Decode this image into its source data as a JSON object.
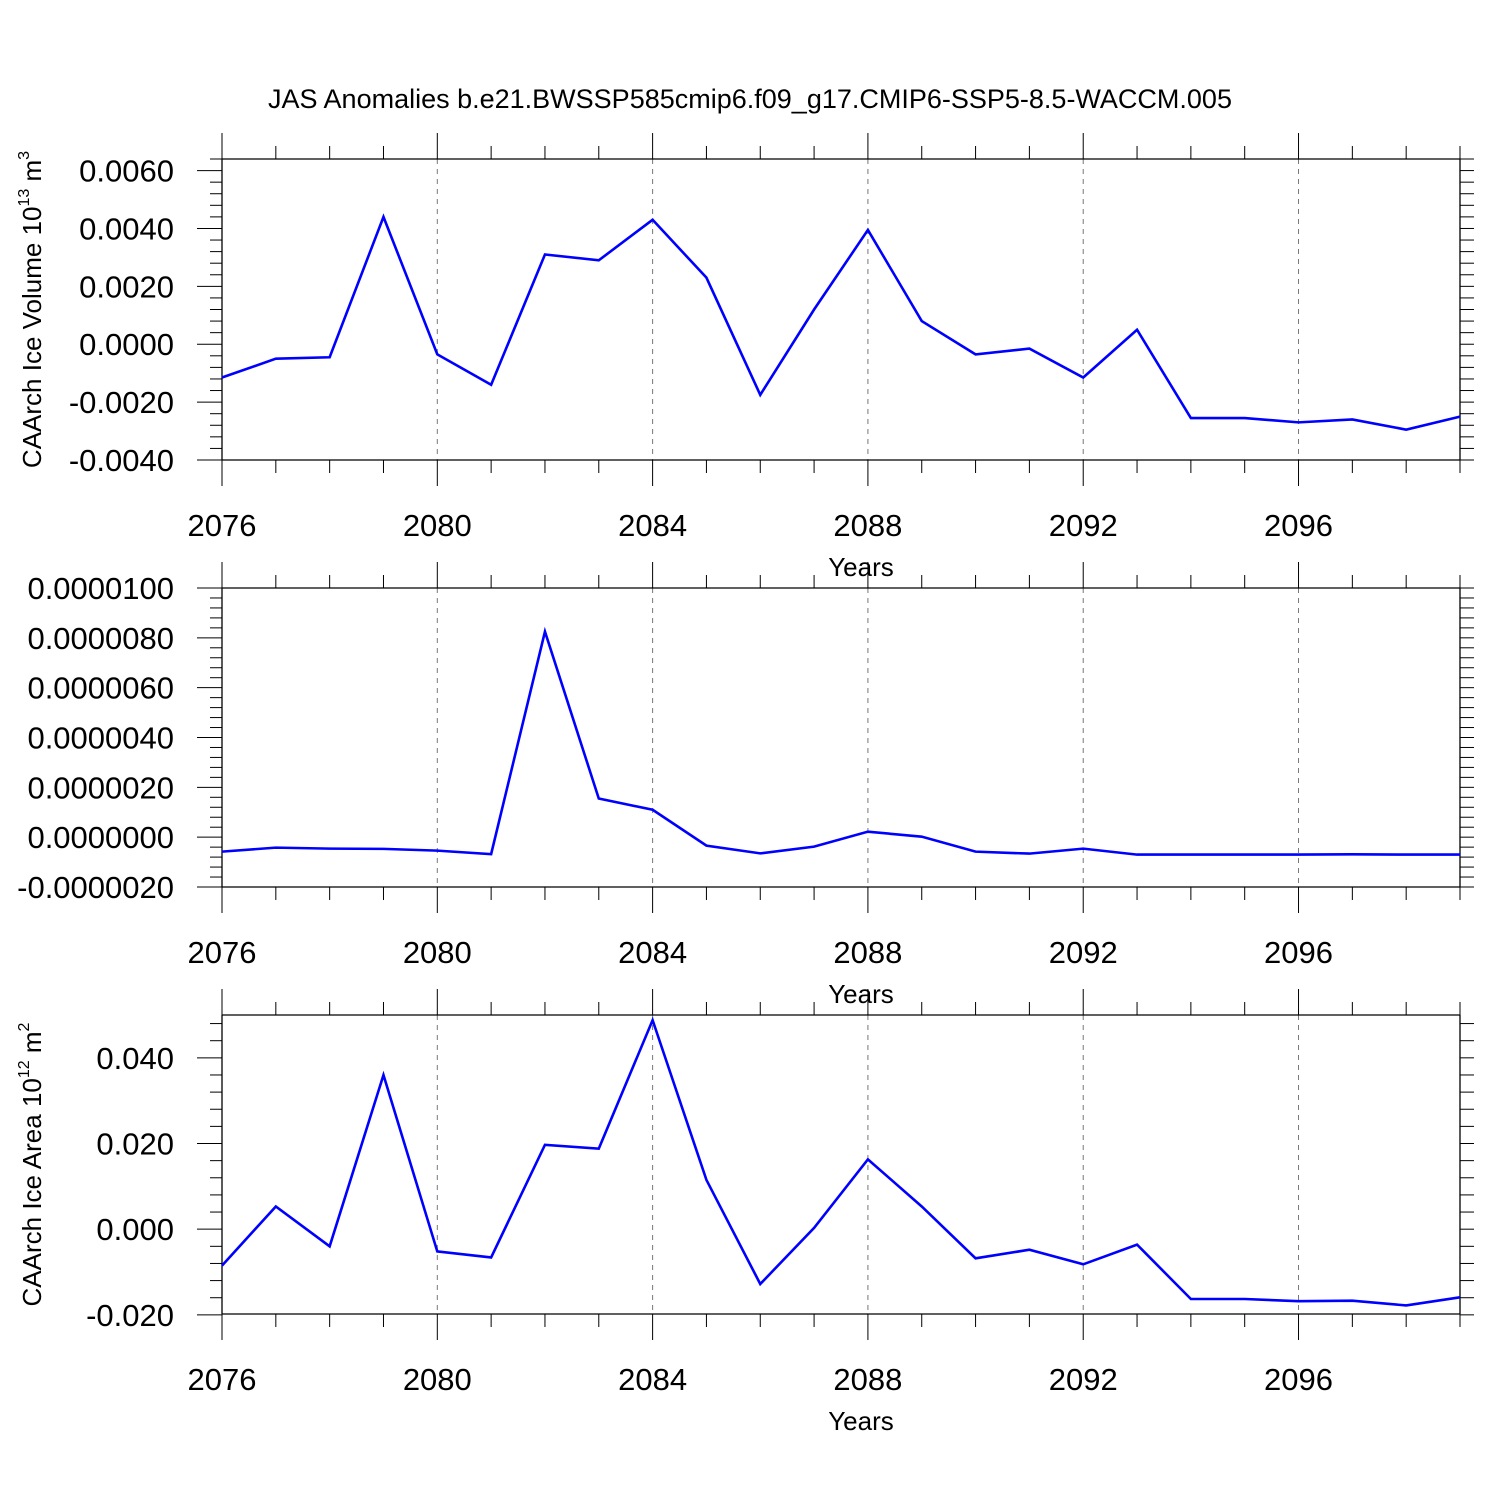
{
  "chart_title": "JAS Anomalies b.e21.BWSSP585cmip6.f09_g17.CMIP6-SSP5-8.5-WACCM.005",
  "chart_data": [
    {
      "type": "line",
      "title": "JAS Anomalies b.e21.BWSSP585cmip6.f09_g17.CMIP6-SSP5-8.5-WACCM.005",
      "xlabel": "Years",
      "ylabel": {
        "text": "CAArch Ice Volume 10",
        "sup": "13",
        "unit": " m",
        "unit_sup": "3"
      },
      "x": [
        2076,
        2077,
        2078,
        2079,
        2080,
        2081,
        2082,
        2083,
        2084,
        2085,
        2086,
        2087,
        2088,
        2089,
        2090,
        2091,
        2092,
        2093,
        2094,
        2095,
        2096,
        2097,
        2098,
        2099
      ],
      "values": [
        -0.00115,
        -0.0005,
        -0.00045,
        0.0044,
        -0.00035,
        -0.0014,
        0.0031,
        0.0029,
        0.0043,
        0.0023,
        -0.00175,
        0.0012,
        0.00395,
        0.0008,
        -0.00035,
        -0.00015,
        -0.00115,
        0.0005,
        -0.00255,
        -0.00255,
        -0.0027,
        -0.0026,
        -0.00295,
        -0.0025
      ],
      "xlim": [
        2076,
        2099
      ],
      "ylim": [
        -0.004,
        0.0064
      ],
      "xticks": [
        "2076",
        "2080",
        "2084",
        "2088",
        "2092",
        "2096"
      ],
      "yticks": [
        "0.0060",
        "0.0040",
        "0.0020",
        "0.0000",
        "-0.0020",
        "-0.0040"
      ],
      "ytick_values": [
        0.006,
        0.004,
        0.002,
        0.0,
        -0.002,
        -0.004
      ],
      "color": "#0000ff",
      "grid": "vertical dashed"
    },
    {
      "type": "line",
      "xlabel": "Years",
      "ylabel": null,
      "x": [
        2076,
        2077,
        2078,
        2079,
        2080,
        2081,
        2082,
        2083,
        2084,
        2085,
        2086,
        2087,
        2088,
        2089,
        2090,
        2091,
        2092,
        2093,
        2094,
        2095,
        2096,
        2097,
        2098,
        2099
      ],
      "values": [
        -5.8e-07,
        -4.2e-07,
        -4.6e-07,
        -4.7e-07,
        -5.4e-07,
        -6.8e-07,
        8.25e-06,
        1.55e-06,
        1.1e-06,
        -3.4e-07,
        -6.5e-07,
        -3.8e-07,
        2.2e-07,
        2e-08,
        -5.8e-07,
        -6.6e-07,
        -4.6e-07,
        -7e-07,
        -7e-07,
        -7e-07,
        -7e-07,
        -6.9e-07,
        -7e-07,
        -7e-07
      ],
      "xlim": [
        2076,
        2099
      ],
      "ylim": [
        -2e-06,
        1e-05
      ],
      "xticks": [
        "2076",
        "2080",
        "2084",
        "2088",
        "2092",
        "2096"
      ],
      "yticks": [
        "0.0000100",
        "0.0000080",
        "0.0000060",
        "0.0000040",
        "0.0000020",
        "0.0000000",
        "-0.0000020"
      ],
      "ytick_values": [
        1e-05,
        8e-06,
        6e-06,
        4e-06,
        2e-06,
        0.0,
        -2e-06
      ],
      "color": "#0000ff",
      "grid": "vertical dashed"
    },
    {
      "type": "line",
      "xlabel": "Years",
      "ylabel": {
        "text": "CAArch Ice Area 10",
        "sup": "12",
        "unit": " m",
        "unit_sup": "2"
      },
      "x": [
        2076,
        2077,
        2078,
        2079,
        2080,
        2081,
        2082,
        2083,
        2084,
        2085,
        2086,
        2087,
        2088,
        2089,
        2090,
        2091,
        2092,
        2093,
        2094,
        2095,
        2096,
        2097,
        2098,
        2099
      ],
      "values": [
        -0.0085,
        0.0053,
        -0.004,
        0.036,
        -0.0052,
        -0.0066,
        0.0197,
        0.0188,
        0.0488,
        0.0115,
        -0.0128,
        0.0003,
        0.0163,
        0.0053,
        -0.0068,
        -0.0048,
        -0.0082,
        -0.0036,
        -0.0163,
        -0.0163,
        -0.0168,
        -0.0167,
        -0.0178,
        -0.0159
      ],
      "xlim": [
        2076,
        2099
      ],
      "ylim": [
        -0.0198,
        0.05
      ],
      "xticks": [
        "2076",
        "2080",
        "2084",
        "2088",
        "2092",
        "2096"
      ],
      "yticks": [
        "0.040",
        "0.020",
        "0.000",
        "-0.020"
      ],
      "ytick_values": [
        0.04,
        0.02,
        0.0,
        -0.02
      ],
      "color": "#0000ff",
      "grid": "vertical dashed"
    }
  ]
}
